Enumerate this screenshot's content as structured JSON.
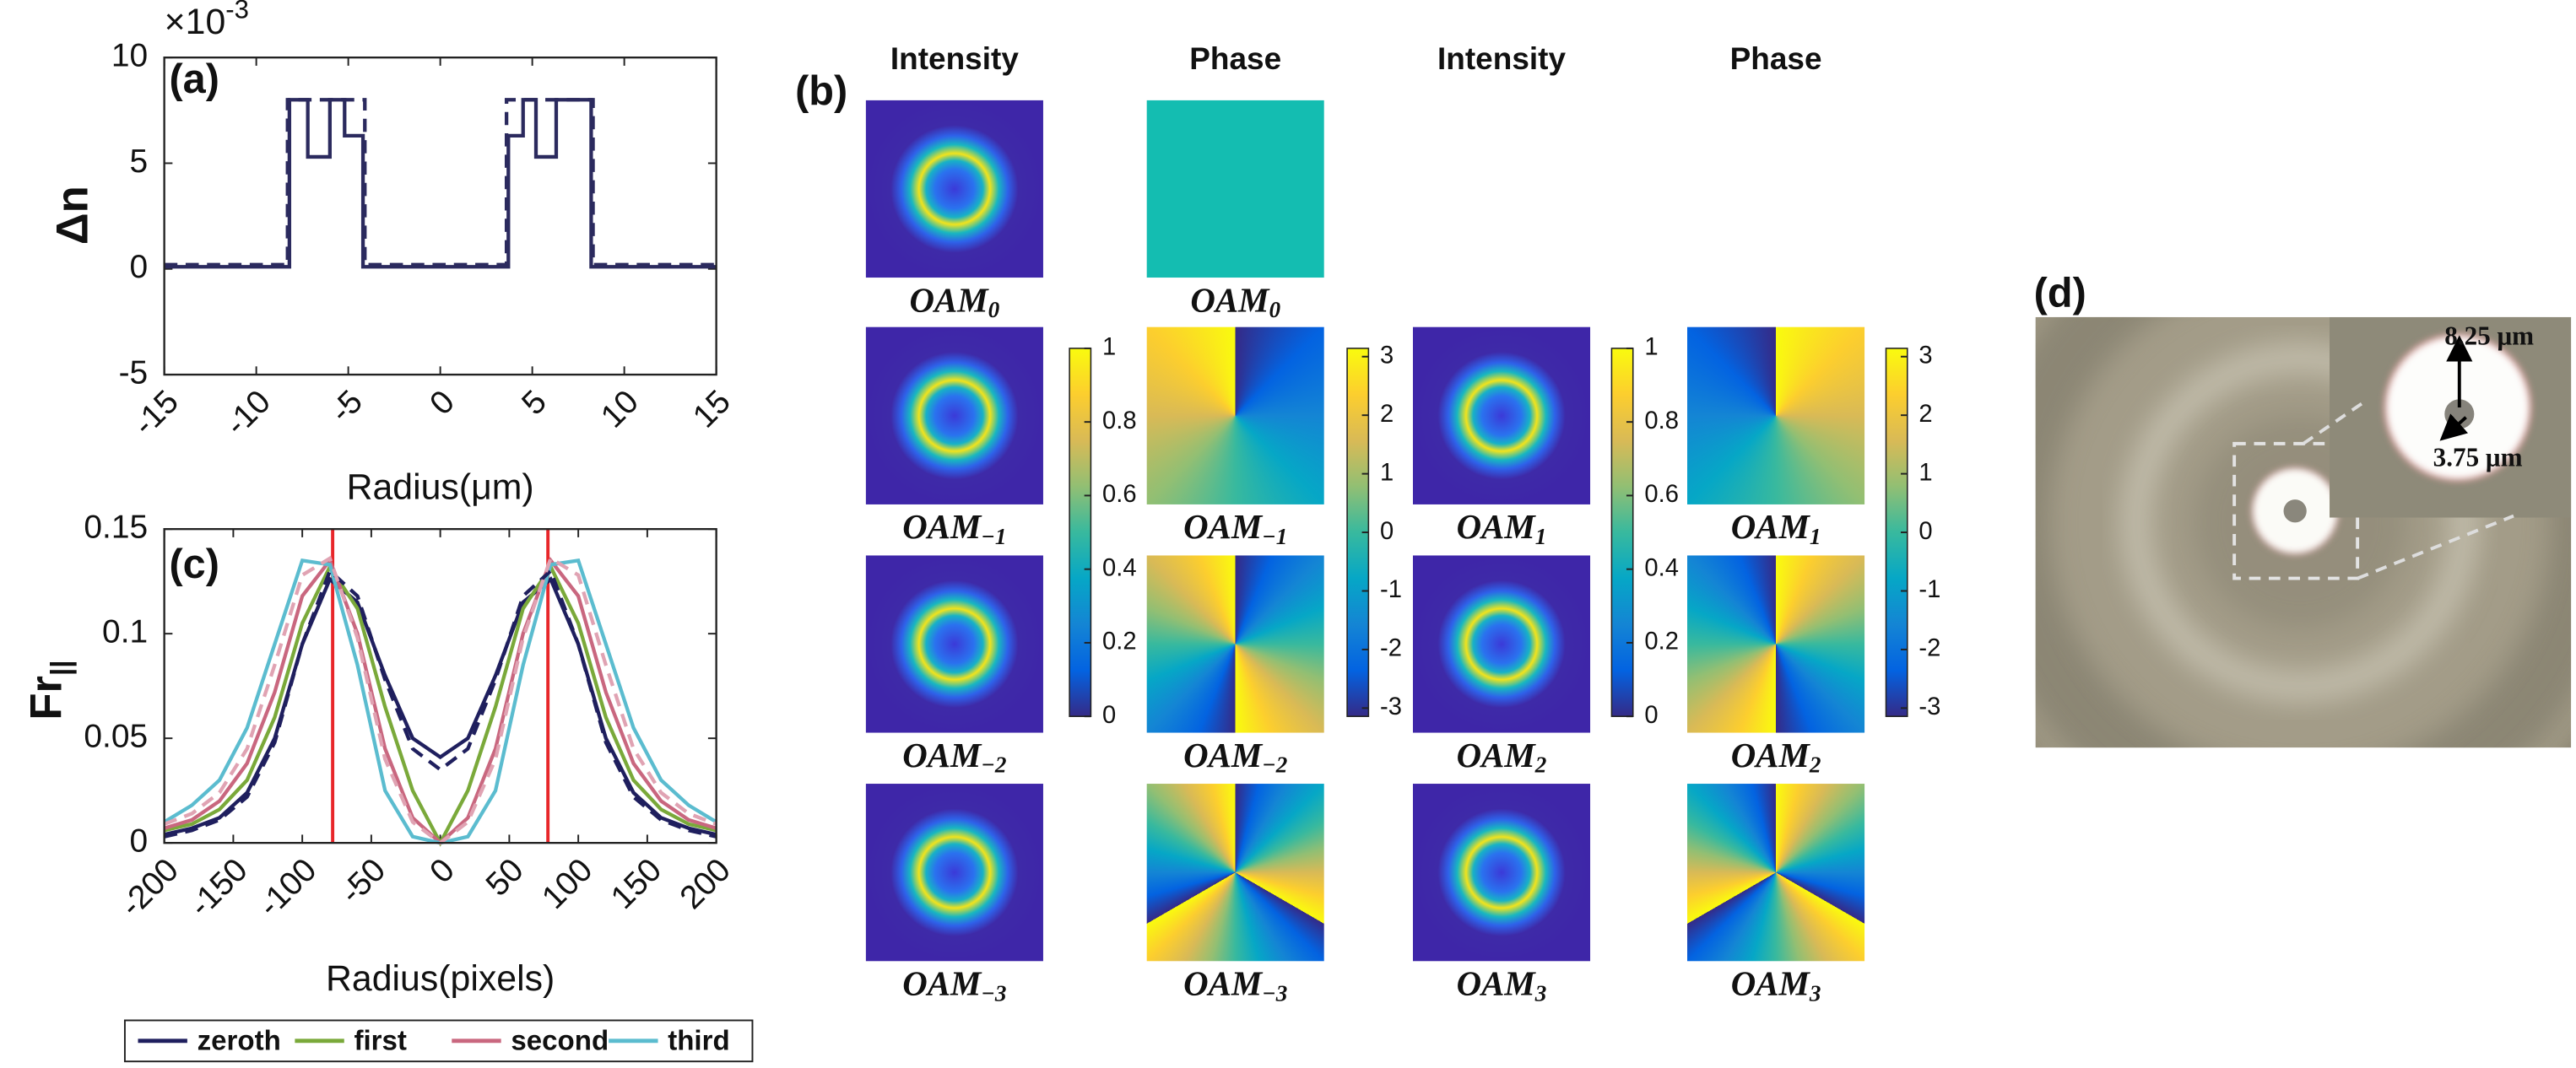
{
  "chart_data": [
    {
      "type": "line",
      "panel_label": "(a)",
      "xlabel": "Radius(μm)",
      "ylabel": "Δn",
      "y_scale_label": {
        "base": "×10",
        "exp": "-3"
      },
      "xlim": [
        -15,
        15
      ],
      "xticks": [
        -15,
        -10,
        -5,
        0,
        5,
        10,
        15
      ],
      "ylim": [
        -5,
        10
      ],
      "yticks": [
        -5,
        0,
        5,
        10
      ],
      "series": [
        {
          "color": "#2b2a5e",
          "dash": false,
          "x": [
            -15,
            -8.2,
            -8.2,
            -7.2,
            -7.2,
            -6,
            -6,
            -5.2,
            -5.2,
            -4.2,
            -4.2,
            3.7,
            3.7,
            4.5,
            4.5,
            5.2,
            5.2,
            6.3,
            6.3,
            8.2,
            8.2,
            15
          ],
          "values": [
            0.1,
            0.1,
            8,
            8,
            5.3,
            5.3,
            8,
            8,
            6.3,
            6.3,
            0.1,
            0.1,
            6.3,
            6.3,
            8,
            8,
            5.3,
            5.3,
            8,
            8,
            0.1,
            0.1
          ]
        },
        {
          "color": "#2b2a5e",
          "dash": true,
          "x": [
            -15,
            -8.3,
            -8.3,
            -4.1,
            -4.1,
            3.6,
            3.6,
            8.3,
            8.3,
            15
          ],
          "values": [
            0.2,
            0.2,
            8,
            8,
            0.2,
            0.2,
            8,
            8,
            0.2,
            0.2
          ]
        }
      ]
    },
    {
      "type": "line",
      "panel_label": "(c)",
      "xlabel": "Radius(pixels)",
      "ylabel": {
        "base": "Fr",
        "sub": "||"
      },
      "xlim": [
        -200,
        200
      ],
      "xticks": [
        -200,
        -150,
        -100,
        -50,
        0,
        50,
        100,
        150,
        200
      ],
      "ylim": [
        0,
        0.15
      ],
      "yticks": [
        0,
        0.05,
        0.1,
        0.15
      ],
      "vlines": [
        -78,
        78
      ],
      "vline_color": "#e8262a",
      "legend": "bottom",
      "x": [
        -200,
        -180,
        -160,
        -140,
        -120,
        -100,
        -80,
        -60,
        -40,
        -20,
        0,
        20,
        40,
        60,
        80,
        100,
        120,
        140,
        160,
        180,
        200
      ],
      "series": [
        {
          "name": "zeroth",
          "color": "#1f1f5e",
          "dash": false,
          "values": [
            0.004,
            0.007,
            0.012,
            0.024,
            0.05,
            0.095,
            0.126,
            0.115,
            0.08,
            0.05,
            0.041,
            0.05,
            0.08,
            0.115,
            0.126,
            0.095,
            0.05,
            0.024,
            0.012,
            0.007,
            0.004
          ]
        },
        {
          "name": "first",
          "color": "#7aa93a",
          "dash": false,
          "values": [
            0.006,
            0.009,
            0.016,
            0.03,
            0.06,
            0.105,
            0.132,
            0.112,
            0.065,
            0.025,
            0,
            0.025,
            0.065,
            0.112,
            0.132,
            0.105,
            0.06,
            0.03,
            0.016,
            0.009,
            0.006
          ]
        },
        {
          "name": "second",
          "color": "#c9677f",
          "dash": false,
          "values": [
            0.007,
            0.011,
            0.02,
            0.038,
            0.072,
            0.118,
            0.135,
            0.1,
            0.045,
            0.012,
            0,
            0.012,
            0.045,
            0.1,
            0.135,
            0.118,
            0.072,
            0.038,
            0.02,
            0.011,
            0.007
          ]
        },
        {
          "name": "third",
          "color": "#5bbccf",
          "dash": false,
          "values": [
            0.01,
            0.018,
            0.03,
            0.055,
            0.095,
            0.135,
            0.133,
            0.085,
            0.025,
            0.003,
            0,
            0.003,
            0.025,
            0.085,
            0.133,
            0.135,
            0.095,
            0.055,
            0.03,
            0.018,
            0.01
          ]
        },
        {
          "color": "#1f1f5e",
          "dash": true,
          "values": [
            0.003,
            0.006,
            0.011,
            0.022,
            0.048,
            0.095,
            0.13,
            0.118,
            0.078,
            0.045,
            0.035,
            0.045,
            0.078,
            0.118,
            0.13,
            0.095,
            0.048,
            0.022,
            0.011,
            0.006,
            0.003
          ]
        },
        {
          "color": "#e0a3b3",
          "dash": true,
          "values": [
            0.009,
            0.014,
            0.024,
            0.045,
            0.085,
            0.128,
            0.136,
            0.098,
            0.04,
            0.01,
            0,
            0.01,
            0.04,
            0.098,
            0.136,
            0.128,
            0.085,
            0.045,
            0.024,
            0.014,
            0.009
          ]
        }
      ]
    }
  ],
  "panel_b": {
    "panel_label": "(b)",
    "headers": [
      "Intensity",
      "Phase",
      "Intensity",
      "Phase"
    ],
    "rows": [
      [
        {
          "image": "intensity",
          "label": {
            "base": "OAM",
            "sub": "0"
          }
        },
        {
          "image": "phase",
          "label": {
            "base": "OAM",
            "sub": "0"
          }
        }
      ],
      [
        {
          "image": "intensity",
          "label": {
            "base": "OAM",
            "sub": "−1"
          }
        },
        {
          "image": "phase",
          "label": {
            "base": "OAM",
            "sub": "−1"
          }
        },
        {
          "image": "intensity",
          "label": {
            "base": "OAM",
            "sub": "1"
          }
        },
        {
          "image": "phase",
          "label": {
            "base": "OAM",
            "sub": "1"
          }
        }
      ],
      [
        {
          "image": "intensity",
          "label": {
            "base": "OAM",
            "sub": "−2"
          }
        },
        {
          "image": "phase",
          "label": {
            "base": "OAM",
            "sub": "−2"
          }
        },
        {
          "image": "intensity",
          "label": {
            "base": "OAM",
            "sub": "2"
          }
        },
        {
          "image": "phase",
          "label": {
            "base": "OAM",
            "sub": "2"
          }
        }
      ],
      [
        {
          "image": "intensity",
          "label": {
            "base": "OAM",
            "sub": "−3"
          }
        },
        {
          "image": "phase",
          "label": {
            "base": "OAM",
            "sub": "−3"
          }
        },
        {
          "image": "intensity",
          "label": {
            "base": "OAM",
            "sub": "3"
          }
        },
        {
          "image": "phase",
          "label": {
            "base": "OAM",
            "sub": "3"
          }
        }
      ]
    ],
    "colorbars": [
      {
        "lim": [
          0,
          1
        ],
        "ticks": [
          0,
          0.2,
          0.4,
          0.6,
          0.8,
          1
        ]
      },
      {
        "lim": [
          -3.1416,
          3.1416
        ],
        "ticks": [
          -3,
          -2,
          -1,
          0,
          1,
          2,
          3
        ]
      },
      {
        "lim": [
          0,
          1
        ],
        "ticks": [
          0,
          0.2,
          0.4,
          0.6,
          0.8,
          1
        ]
      },
      {
        "lim": [
          -3.1416,
          3.1416
        ],
        "ticks": [
          -3,
          -2,
          -1,
          0,
          1,
          2,
          3
        ]
      }
    ]
  },
  "panel_d": {
    "panel_label": "(d)",
    "scale_labels": [
      "8.25 μm",
      "3.75 μm"
    ]
  }
}
